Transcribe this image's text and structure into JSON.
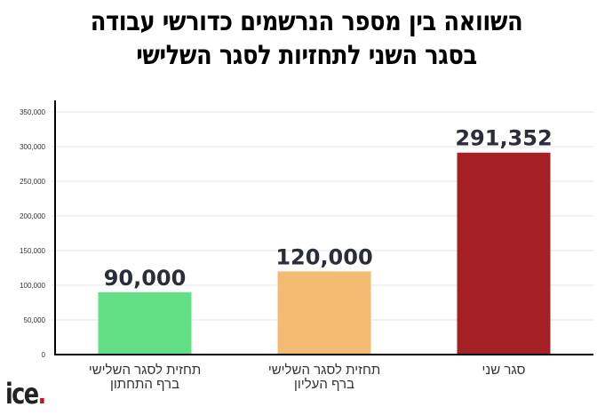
{
  "chart_data": {
    "type": "bar",
    "title_lines": [
      "השוואה בין מספר הנרשמים כדורשי עבודה",
      "בסגר השני לתחזיות לסגר השלישי"
    ],
    "categories": [
      [
        "תחזית לסגר השלישי",
        "ברף התחתון"
      ],
      [
        "תחזית לסגר השלישי",
        "ברף העליון"
      ],
      [
        "סגר שני"
      ]
    ],
    "values": [
      90000,
      120000,
      291352
    ],
    "data_labels": [
      "90,000",
      "120,000",
      "291,352"
    ],
    "colors": [
      "#63e085",
      "#f4bc73",
      "#a52024"
    ],
    "ylim": [
      0,
      350000
    ],
    "yticks": [
      0,
      50000,
      100000,
      150000,
      200000,
      250000,
      300000,
      350000
    ],
    "ytick_labels": [
      "0",
      "50,000",
      "100,000",
      "150,000",
      "200,000",
      "250,000",
      "300,000",
      "350,000"
    ],
    "grid": true,
    "xlabel": "",
    "ylabel": ""
  },
  "logo": {
    "text": "ice",
    "dot": "."
  }
}
